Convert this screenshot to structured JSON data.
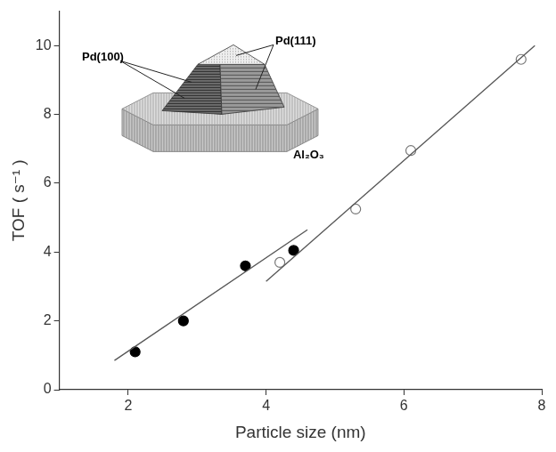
{
  "chart_data": {
    "type": "scatter",
    "x_label": "Particle size (nm)",
    "y_label": "TOF ( s⁻¹ )",
    "xlim": [
      1,
      8
    ],
    "xticks": [
      2,
      4,
      6,
      8
    ],
    "ylim": [
      0,
      11
    ],
    "yticks": [
      0,
      2,
      4,
      6,
      8,
      10
    ],
    "grid": false,
    "series": [
      {
        "type": "line",
        "color": "#555555",
        "line_style": "solid",
        "x": [
          1.8,
          4.6
        ],
        "y": [
          0.85,
          4.65
        ]
      },
      {
        "type": "line",
        "color": "#555555",
        "line_style": "solid",
        "x": [
          4.0,
          7.9
        ],
        "y": [
          3.15,
          10.0
        ]
      },
      {
        "type": "scatter",
        "color": "#000000",
        "marker": "filled_circle",
        "x": [
          2.1,
          2.8,
          3.7,
          4.4
        ],
        "y": [
          1.1,
          2.0,
          3.6,
          4.05
        ]
      },
      {
        "type": "scatter",
        "color": "#777777",
        "marker": "open_circle",
        "x": [
          4.2,
          5.3,
          6.1,
          7.7
        ],
        "y": [
          3.7,
          5.25,
          6.95,
          9.6
        ]
      }
    ],
    "annotations": [
      {
        "text": "Pd(100)"
      },
      {
        "text": "Pd(111)"
      },
      {
        "text": "Al₂O₃"
      }
    ]
  }
}
